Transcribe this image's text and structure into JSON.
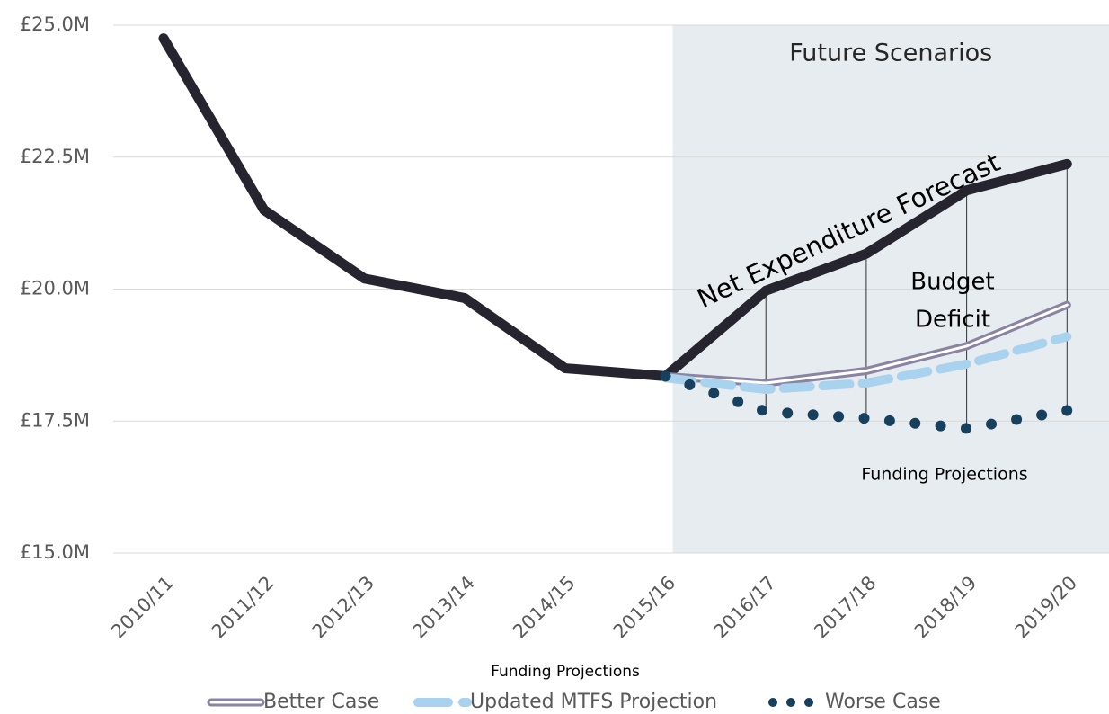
{
  "chart_data": {
    "type": "line",
    "categories": [
      "2010/11",
      "2011/12",
      "2012/13",
      "2013/14",
      "2014/15",
      "2015/16",
      "2016/17",
      "2017/18",
      "2018/19",
      "2019/20"
    ],
    "series": [
      {
        "name": "Net Expenditure Forecast",
        "color": "#26242f",
        "style": "solid",
        "values": [
          24.75,
          21.5,
          20.2,
          19.83,
          18.5,
          18.35,
          19.97,
          20.67,
          21.87,
          22.37
        ]
      },
      {
        "name": "Better Case",
        "color": "#8a83a3",
        "style": "double",
        "values": [
          null,
          null,
          null,
          null,
          null,
          18.35,
          18.22,
          18.45,
          18.92,
          19.7
        ]
      },
      {
        "name": "Updated MTFS Projection",
        "color": "#a9d2ee",
        "style": "dashed",
        "values": [
          null,
          null,
          null,
          null,
          null,
          18.32,
          18.1,
          18.22,
          18.58,
          19.1
        ]
      },
      {
        "name": "Worse Case",
        "color": "#173f5e",
        "style": "dotted",
        "values": [
          null,
          null,
          null,
          null,
          null,
          18.35,
          17.68,
          17.55,
          17.36,
          17.7
        ]
      }
    ],
    "legend_series": [
      1,
      2,
      3
    ],
    "ylim": [
      15,
      25
    ],
    "yticks": [
      {
        "value": 15,
        "label": "£15.0M"
      },
      {
        "value": 17.5,
        "label": "£17.5M"
      },
      {
        "value": 20,
        "label": "£20.0M"
      },
      {
        "value": 22.5,
        "label": "£22.5M"
      },
      {
        "value": 25,
        "label": "£25.0M"
      }
    ],
    "grid": true,
    "x_label": "Funding Projections",
    "highlight": {
      "from": "2015/16",
      "label": "Future Scenarios",
      "color": "#e6ecef"
    },
    "annotations": {
      "net": "Net Expenditure Forecast",
      "deficit": [
        "Budget",
        "Deficit"
      ],
      "funding": "Funding Projections"
    },
    "legend_position": "bottom"
  }
}
